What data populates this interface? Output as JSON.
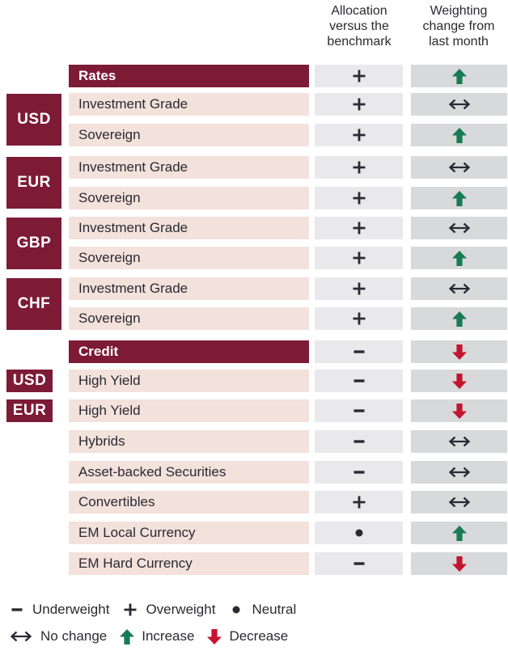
{
  "columns": {
    "allocation_header": "Allocation\nversus the\nbenchmark",
    "weighting_header": "Weighting\nchange from\nlast month"
  },
  "rows": [
    {
      "type": "section",
      "label": "Rates",
      "allocation": "overweight",
      "weighting": "increase"
    },
    {
      "type": "item",
      "currency": "USD",
      "currency_rows": 2,
      "label": "Investment Grade",
      "allocation": "overweight",
      "weighting": "no_change"
    },
    {
      "type": "item",
      "label": "Sovereign",
      "allocation": "overweight",
      "weighting": "increase"
    },
    {
      "type": "item",
      "currency": "EUR",
      "currency_rows": 2,
      "label": "Investment Grade",
      "allocation": "overweight",
      "weighting": "no_change"
    },
    {
      "type": "item",
      "label": "Sovereign",
      "allocation": "overweight",
      "weighting": "increase"
    },
    {
      "type": "item",
      "currency": "GBP",
      "currency_rows": 2,
      "label": "Investment Grade",
      "allocation": "overweight",
      "weighting": "no_change"
    },
    {
      "type": "item",
      "label": "Sovereign",
      "allocation": "overweight",
      "weighting": "increase"
    },
    {
      "type": "item",
      "currency": "CHF",
      "currency_rows": 2,
      "label": "Investment Grade",
      "allocation": "overweight",
      "weighting": "no_change"
    },
    {
      "type": "item",
      "label": "Sovereign",
      "allocation": "overweight",
      "weighting": "increase"
    },
    {
      "type": "section",
      "label": "Credit",
      "allocation": "underweight",
      "weighting": "decrease"
    },
    {
      "type": "item",
      "currency": "USD",
      "currency_rows": 1,
      "label": "High Yield",
      "allocation": "underweight",
      "weighting": "decrease"
    },
    {
      "type": "item",
      "currency": "EUR",
      "currency_rows": 1,
      "label": "High Yield",
      "allocation": "underweight",
      "weighting": "decrease"
    },
    {
      "type": "item",
      "label": "Hybrids",
      "allocation": "underweight",
      "weighting": "no_change"
    },
    {
      "type": "item",
      "label": "Asset-backed Securities",
      "allocation": "underweight",
      "weighting": "no_change"
    },
    {
      "type": "item",
      "label": "Convertibles",
      "allocation": "overweight",
      "weighting": "no_change"
    },
    {
      "type": "item",
      "label": "EM Local Currency",
      "allocation": "neutral",
      "weighting": "increase"
    },
    {
      "type": "item",
      "label": "EM Hard Currency",
      "allocation": "underweight",
      "weighting": "decrease"
    }
  ],
  "legend": {
    "line1": [
      {
        "icon": "minus",
        "label": "Underweight"
      },
      {
        "icon": "plus",
        "label": "Overweight"
      },
      {
        "icon": "dot",
        "label": "Neutral"
      }
    ],
    "line2": [
      {
        "icon": "no_change",
        "label": "No change"
      },
      {
        "icon": "up_arrow",
        "label": "Increase"
      },
      {
        "icon": "down_arrow",
        "label": "Decrease"
      }
    ]
  },
  "colors": {
    "maroon": "#7d1b36",
    "pink": "#f3e1dc",
    "cell_light": "#e9e9eb",
    "cell_dark": "#d8d9da",
    "green": "#177c54",
    "red": "#c41430",
    "text": "#2a2a32"
  }
}
